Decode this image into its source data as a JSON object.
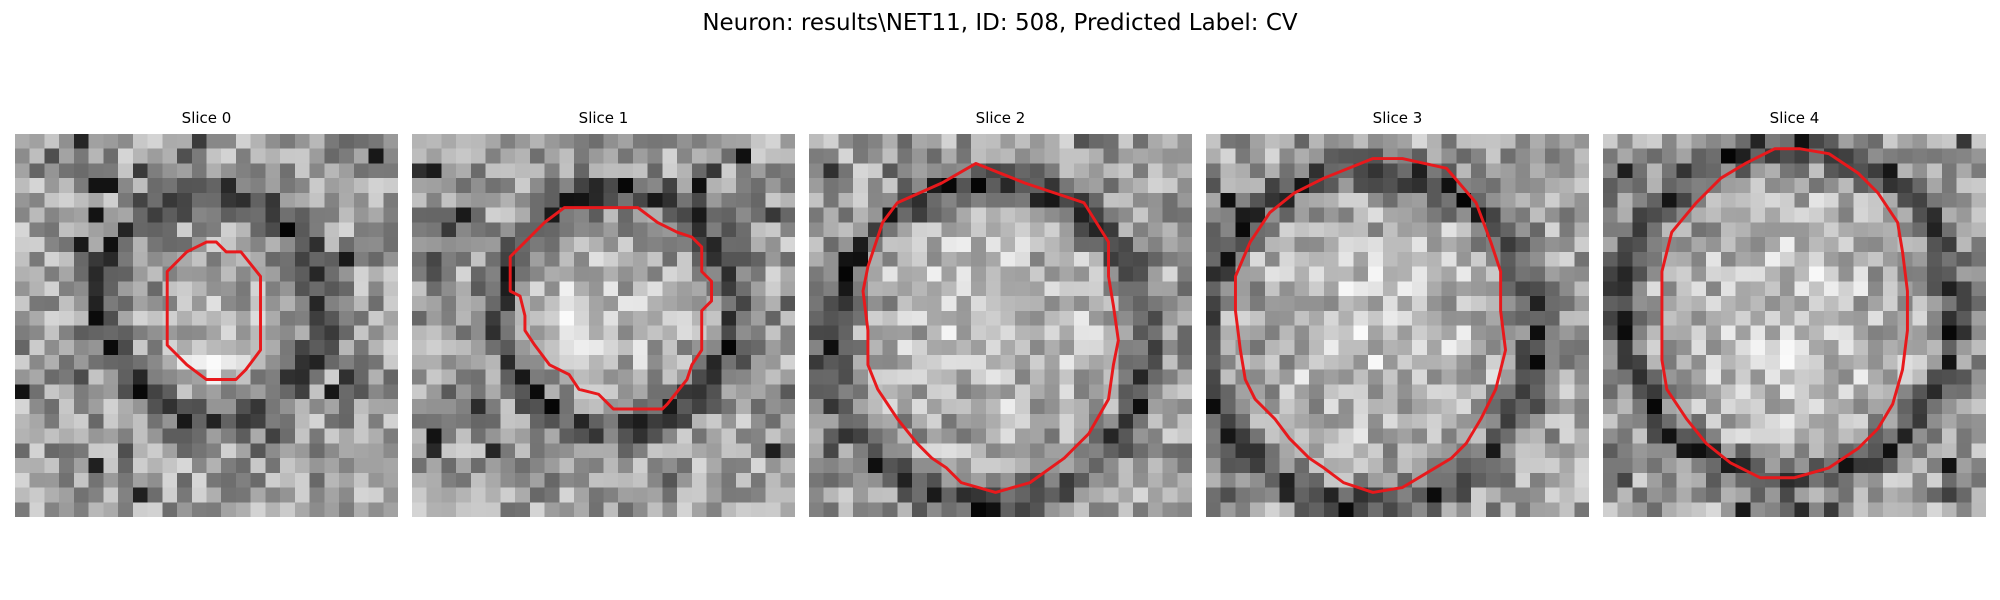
{
  "figure": {
    "title": "Neuron: results\\NET11, ID: 508, Predicted Label: CV"
  },
  "panels": [
    {
      "label": "Slice 0",
      "contour": [
        [
          39,
          22
        ],
        [
          41,
          22
        ],
        [
          43,
          24
        ],
        [
          46,
          24
        ],
        [
          50,
          29
        ],
        [
          50,
          44
        ],
        [
          47,
          48
        ],
        [
          45,
          50
        ],
        [
          39,
          50
        ],
        [
          35,
          47
        ],
        [
          31,
          43
        ],
        [
          31,
          36
        ],
        [
          31,
          28
        ],
        [
          35,
          24
        ]
      ],
      "bright_spot": [
        40,
        45,
        5
      ]
    },
    {
      "label": "Slice 1",
      "contour": [
        [
          31,
          15
        ],
        [
          46,
          15
        ],
        [
          50,
          18
        ],
        [
          54,
          20
        ],
        [
          57,
          21
        ],
        [
          59,
          23
        ],
        [
          59,
          28
        ],
        [
          61,
          30
        ],
        [
          61,
          34
        ],
        [
          59,
          36
        ],
        [
          59,
          44
        ],
        [
          57,
          47
        ],
        [
          56,
          50
        ],
        [
          52,
          55
        ],
        [
          51,
          56
        ],
        [
          41,
          56
        ],
        [
          38,
          53
        ],
        [
          34,
          52
        ],
        [
          32,
          49
        ],
        [
          28,
          47
        ],
        [
          25,
          43
        ],
        [
          23,
          40
        ],
        [
          23,
          37
        ],
        [
          22,
          33
        ],
        [
          20,
          32
        ],
        [
          20,
          25
        ],
        [
          23,
          22
        ],
        [
          27,
          18
        ]
      ],
      "bright_spot": [
        36,
        40,
        10
      ]
    },
    {
      "label": "Slice 2",
      "contour": [
        [
          34,
          6
        ],
        [
          44,
          10
        ],
        [
          56,
          14
        ],
        [
          61,
          22
        ],
        [
          61,
          29
        ],
        [
          62,
          35
        ],
        [
          63,
          42
        ],
        [
          62,
          47
        ],
        [
          61,
          54
        ],
        [
          57,
          61
        ],
        [
          54,
          64
        ],
        [
          52,
          66
        ],
        [
          45,
          71
        ],
        [
          38,
          73
        ],
        [
          31,
          71
        ],
        [
          28,
          68
        ],
        [
          25,
          66
        ],
        [
          22,
          63
        ],
        [
          18,
          58
        ],
        [
          14,
          52
        ],
        [
          12,
          47
        ],
        [
          12,
          40
        ],
        [
          11,
          32
        ],
        [
          12,
          27
        ],
        [
          15,
          18
        ],
        [
          18,
          14
        ],
        [
          27,
          10
        ]
      ],
      "bright_spot": [
        38,
        38,
        18
      ]
    },
    {
      "label": "Slice 3",
      "contour": [
        [
          34,
          5
        ],
        [
          40,
          5
        ],
        [
          49,
          7
        ],
        [
          55,
          14
        ],
        [
          58,
          22
        ],
        [
          60,
          28
        ],
        [
          60,
          36
        ],
        [
          61,
          44
        ],
        [
          59,
          52
        ],
        [
          56,
          58
        ],
        [
          53,
          63
        ],
        [
          50,
          66
        ],
        [
          45,
          69
        ],
        [
          40,
          72
        ],
        [
          34,
          73
        ],
        [
          28,
          71
        ],
        [
          24,
          68
        ],
        [
          21,
          66
        ],
        [
          17,
          62
        ],
        [
          14,
          58
        ],
        [
          10,
          54
        ],
        [
          8,
          50
        ],
        [
          7,
          44
        ],
        [
          6,
          36
        ],
        [
          6,
          29
        ],
        [
          9,
          22
        ],
        [
          13,
          16
        ],
        [
          18,
          12
        ],
        [
          24,
          9
        ]
      ],
      "bright_spot": [
        35,
        40,
        20
      ]
    },
    {
      "label": "Slice 4",
      "contour": [
        [
          40,
          3
        ],
        [
          46,
          4
        ],
        [
          52,
          8
        ],
        [
          56,
          12
        ],
        [
          60,
          18
        ],
        [
          61,
          24
        ],
        [
          62,
          32
        ],
        [
          62,
          40
        ],
        [
          61,
          48
        ],
        [
          59,
          55
        ],
        [
          56,
          60
        ],
        [
          52,
          64
        ],
        [
          46,
          68
        ],
        [
          39,
          70
        ],
        [
          32,
          70
        ],
        [
          26,
          67
        ],
        [
          21,
          63
        ],
        [
          17,
          58
        ],
        [
          13,
          52
        ],
        [
          12,
          46
        ],
        [
          12,
          36
        ],
        [
          12,
          28
        ],
        [
          14,
          20
        ],
        [
          19,
          14
        ],
        [
          24,
          9
        ],
        [
          29,
          6
        ],
        [
          35,
          3
        ]
      ],
      "bright_spot": [
        38,
        38,
        20
      ]
    }
  ]
}
